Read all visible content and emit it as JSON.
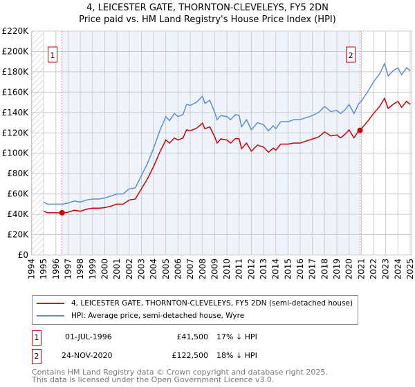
{
  "chart_data": {
    "type": "line",
    "title": "4, LEICESTER GATE, THORNTON-CLEVELEYS, FY5 2DN",
    "subtitle": "Price paid vs. HM Land Registry's House Price Index (HPI)",
    "xlabel": "",
    "ylabel": "",
    "xlim": [
      1994,
      2025.1
    ],
    "ylim": [
      0,
      220000
    ],
    "yticks": [
      0,
      20000,
      40000,
      60000,
      80000,
      100000,
      120000,
      140000,
      160000,
      180000,
      200000,
      220000
    ],
    "ytick_labels": [
      "£0",
      "£20K",
      "£40K",
      "£60K",
      "£80K",
      "£100K",
      "£120K",
      "£140K",
      "£160K",
      "£180K",
      "£200K",
      "£220K"
    ],
    "xticks": [
      "1994",
      "1995",
      "1996",
      "1997",
      "1998",
      "1999",
      "2000",
      "2001",
      "2002",
      "2003",
      "2004",
      "2005",
      "2006",
      "2007",
      "2008",
      "2009",
      "2010",
      "2011",
      "2012",
      "2013",
      "2014",
      "2015",
      "2016",
      "2017",
      "2018",
      "2019",
      "2020",
      "2021",
      "2022",
      "2023",
      "2024",
      "2025"
    ],
    "grid": true,
    "x": [
      1995,
      1995.3,
      1996,
      1996.5,
      1997,
      1997.5,
      1998,
      1998.5,
      1999,
      1999.5,
      2000,
      2000.5,
      2001,
      2001.5,
      2002,
      2002.5,
      2003,
      2003.5,
      2004,
      2004.5,
      2005,
      2005.3,
      2005.7,
      2006,
      2006.4,
      2006.7,
      2007,
      2007.5,
      2008,
      2008.2,
      2008.6,
      2009,
      2009.2,
      2009.5,
      2010,
      2010.3,
      2010.7,
      2011,
      2011.2,
      2011.6,
      2012,
      2012.5,
      2013,
      2013.4,
      2013.8,
      2014,
      2014.4,
      2015,
      2015.5,
      2016,
      2016.5,
      2017,
      2017.5,
      2018,
      2018.5,
      2019,
      2019.3,
      2019.7,
      2020,
      2020.4,
      2020.8,
      2021,
      2021.5,
      2022,
      2022.5,
      2022.9,
      2023.2,
      2023.6,
      2024,
      2024.3,
      2024.7,
      2025
    ],
    "series": [
      {
        "name": "4, LEICESTER GATE, THORNTON-CLEVELEYS, FY5 2DN (semi-detached house)",
        "color": "#cc0000",
        "values": [
          43,
          41.5,
          41.5,
          41.5,
          42,
          44,
          43,
          45,
          46,
          46,
          46.5,
          48,
          50,
          50,
          54,
          55,
          65,
          75,
          87,
          101,
          113,
          110,
          115,
          113,
          115,
          123,
          122,
          124.5,
          129.5,
          124,
          126,
          116,
          110,
          114,
          113,
          110,
          114.5,
          114,
          104.5,
          110,
          102,
          108,
          106,
          101,
          105,
          103,
          109,
          109,
          110,
          110,
          112,
          114,
          116,
          121,
          117,
          118,
          115,
          119,
          123,
          115,
          122.5,
          124,
          131,
          139,
          146,
          154,
          144,
          148,
          151,
          145,
          151,
          148
        ]
      },
      {
        "name": "HPI: Average price, semi-detached house, Wyre",
        "color": "#5b8fd0",
        "values": [
          52,
          50,
          50,
          50,
          51,
          53,
          52,
          54,
          55,
          55,
          56,
          58,
          60,
          60,
          65,
          66,
          78,
          90,
          105,
          122,
          136,
          132,
          139,
          136,
          138,
          148,
          147,
          150,
          156,
          149,
          152,
          140,
          133,
          137,
          136,
          133,
          138,
          137,
          126,
          133,
          123,
          130,
          128,
          122,
          127,
          124,
          131,
          131,
          133,
          133,
          135,
          137,
          140,
          146,
          141,
          142,
          139,
          143,
          148,
          139,
          149,
          151,
          160,
          170,
          178,
          188,
          176,
          181,
          184,
          177,
          184,
          181
        ]
      }
    ],
    "value_unit": "thousands GBP",
    "sales": [
      {
        "label": "1",
        "x": 1996.5,
        "value": 41500,
        "date": "01-JUL-1996",
        "price": "£41,500",
        "hpi": "17% ↓ HPI"
      },
      {
        "label": "2",
        "x": 2020.9,
        "value": 122500,
        "date": "24-NOV-2020",
        "price": "£122,500",
        "hpi": "18% ↓ HPI"
      }
    ],
    "legend_placement": "below"
  },
  "footer": {
    "line1": "Contains HM Land Registry data © Crown copyright and database right 2025.",
    "line2": "This data is licensed under the Open Government Licence v3.0."
  }
}
